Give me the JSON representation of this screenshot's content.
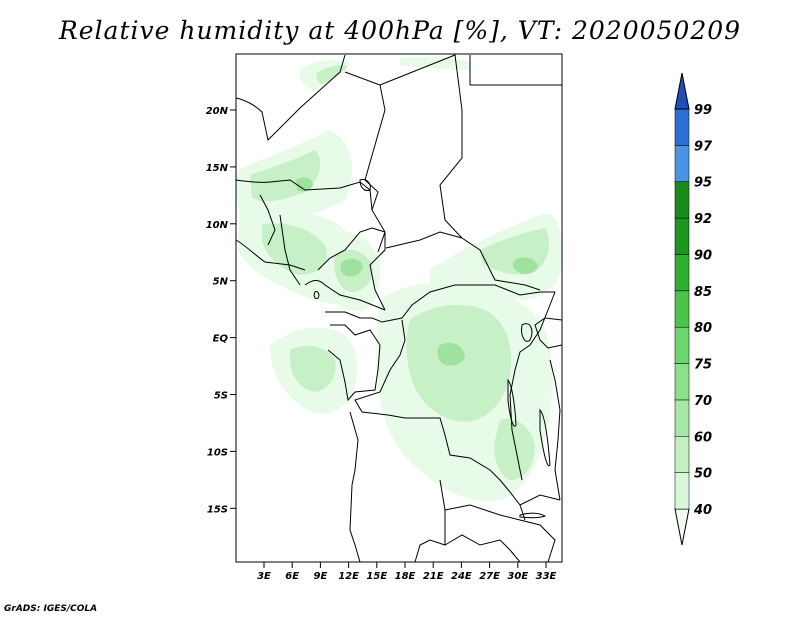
{
  "title": "Relative humidity at 400hPa [%], VT: 2020050209",
  "footer": "GrADS: IGES/COLA",
  "map": {
    "lon_range": [
      0,
      35
    ],
    "lat_range": [
      -20,
      25
    ],
    "lat_ticks": [
      "20N",
      "15N",
      "10N",
      "5N",
      "EQ",
      "5S",
      "10S",
      "15S"
    ],
    "lon_ticks": [
      "3E",
      "6E",
      "9E",
      "12E",
      "15E",
      "18E",
      "21E",
      "24E",
      "27E",
      "30E",
      "33E"
    ]
  },
  "colorbar": {
    "levels": [
      "40",
      "50",
      "60",
      "70",
      "75",
      "80",
      "85",
      "90",
      "92",
      "95",
      "97",
      "99"
    ],
    "colors": [
      "#f0fcf0",
      "#d9f7d9",
      "#c2f0c2",
      "#a7e8a7",
      "#8ce08c",
      "#6cd66c",
      "#4cc44c",
      "#2fae2f",
      "#1c961c",
      "#1a8a1a",
      "#4a94e6",
      "#2b6fd6",
      "#1f4fb8"
    ]
  },
  "colors": {
    "shade_light": "#e8fae8",
    "shade_mid": "#c7f0c7",
    "shade_dark": "#9fe29f",
    "border": "#000000"
  }
}
